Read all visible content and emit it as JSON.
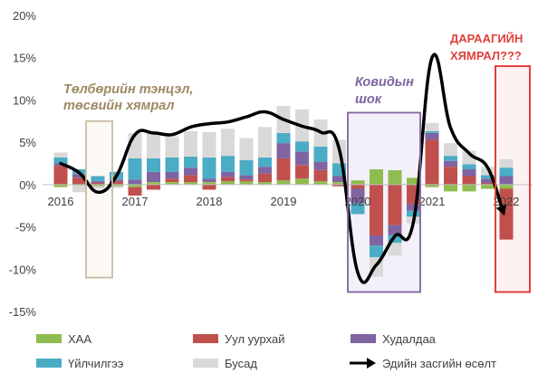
{
  "chart_data": {
    "type": "bar",
    "subtype": "stacked bar with line overlay",
    "ylim": [
      -15,
      20
    ],
    "yticks": [
      -15,
      -10,
      -5,
      0,
      5,
      10,
      15,
      20
    ],
    "ytick_labels": [
      "-15%",
      "-10%",
      "-5%",
      "0%",
      "5%",
      "10%",
      "15%",
      "20%"
    ],
    "year_labels": [
      "2016",
      "2017",
      "2018",
      "2019",
      "2020",
      "2021",
      "2022"
    ],
    "grid": false,
    "legend_position": "bottom",
    "categories": [
      "2016Q1",
      "2016Q2",
      "2016Q3",
      "2016Q4",
      "2017Q1",
      "2017Q2",
      "2017Q3",
      "2017Q4",
      "2018Q1",
      "2018Q2",
      "2018Q3",
      "2018Q4",
      "2019Q1",
      "2019Q2",
      "2019Q3",
      "2019Q4",
      "2020Q1",
      "2020Q2",
      "2020Q3",
      "2020Q4",
      "2021Q1",
      "2021Q2",
      "2021Q3",
      "2021Q4",
      "2022Q1"
    ],
    "series": [
      {
        "name": "ХАА",
        "color": "#8fbc4f",
        "values": [
          -0.3,
          -0.1,
          -0.2,
          -0.2,
          -0.3,
          0.3,
          0.3,
          0.3,
          0.3,
          0.4,
          0.4,
          0.3,
          0.5,
          0.7,
          0.4,
          0.3,
          0.5,
          1.8,
          1.7,
          0.8,
          -0.3,
          -0.8,
          -0.8,
          -0.5,
          -0.5
        ]
      },
      {
        "name": "Уул уурхай",
        "color": "#c0504d",
        "values": [
          2.2,
          0.8,
          0.2,
          0.4,
          -1.0,
          -0.6,
          0.4,
          0.8,
          -0.6,
          0.5,
          0.2,
          1.0,
          2.6,
          1.6,
          1.3,
          -0.2,
          -0.5,
          -6.0,
          -4.8,
          -2.3,
          5.3,
          2.1,
          1.0,
          0.2,
          -6.0
        ]
      },
      {
        "name": "Худалдаа",
        "color": "#8064a2",
        "values": [
          0.3,
          0.4,
          0.2,
          0.2,
          0.6,
          1.2,
          0.8,
          0.9,
          0.4,
          0.6,
          0.5,
          0.8,
          1.8,
          1.6,
          1.0,
          0.7,
          -1.7,
          -1.2,
          -1.2,
          -0.8,
          0.8,
          0.7,
          0.8,
          0.5,
          1.0
        ]
      },
      {
        "name": "Үйлчилгээ",
        "color": "#4bacc6",
        "values": [
          0.7,
          0.6,
          0.6,
          0.9,
          2.5,
          1.6,
          1.7,
          1.3,
          2.5,
          1.9,
          1.8,
          1.1,
          1.2,
          1.2,
          1.8,
          1.5,
          -1.3,
          -1.4,
          -0.9,
          -0.7,
          0.2,
          0.6,
          0.6,
          0.4,
          1.0
        ]
      },
      {
        "name": "Бусад",
        "color": "#d9d9d9",
        "values": [
          0.6,
          -0.8,
          -0.3,
          -0.2,
          3.0,
          3.1,
          2.5,
          3.0,
          3.0,
          3.2,
          2.6,
          3.6,
          3.2,
          3.8,
          3.2,
          2.8,
          0,
          -2.3,
          -1.5,
          -0.8,
          1.0,
          1.5,
          1.6,
          1.0,
          1.0
        ]
      }
    ],
    "line": {
      "name": "Эдийн засгийн өсөлт",
      "color": "#000000",
      "values": [
        2.5,
        1.4,
        -0.9,
        1.0,
        5.9,
        6.1,
        5.9,
        6.8,
        7.2,
        7.4,
        8.0,
        8.6,
        7.7,
        6.9,
        6.2,
        4.2,
        -10.4,
        -9.5,
        -6.1,
        -4.4,
        15.0,
        6.7,
        3.7,
        2.0,
        -3.5
      ]
    },
    "annotations": {
      "balance_crisis": "Төлбөрийн тэнцэл, төсвийн хямрал",
      "covid_shock": "Ковидын шок",
      "next_crisis": "ДАРААГИЙН ХЯМРАЛ???"
    },
    "annotation_colors": {
      "balance_crisis": "#9c8a63",
      "covid_shock": "#8064a2",
      "next_crisis": "#e0403a"
    }
  }
}
